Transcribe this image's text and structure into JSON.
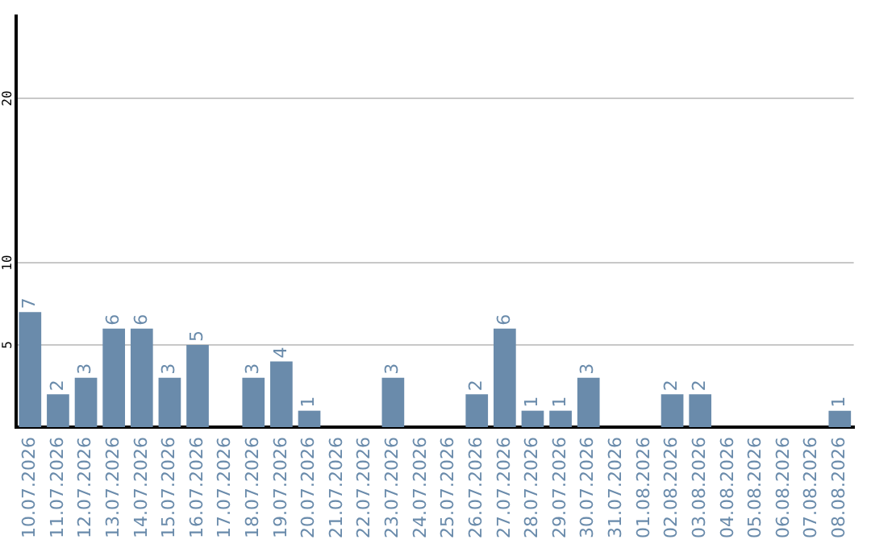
{
  "chart_data": {
    "type": "bar",
    "categories": [
      "10.07.2026",
      "11.07.2026",
      "12.07.2026",
      "13.07.2026",
      "14.07.2026",
      "15.07.2026",
      "16.07.2026",
      "17.07.2026",
      "18.07.2026",
      "19.07.2026",
      "20.07.2026",
      "21.07.2026",
      "22.07.2026",
      "23.07.2026",
      "24.07.2026",
      "25.07.2026",
      "26.07.2026",
      "27.07.2026",
      "28.07.2026",
      "29.07.2026",
      "30.07.2026",
      "31.07.2026",
      "01.08.2026",
      "02.08.2026",
      "03.08.2026",
      "04.08.2026",
      "05.08.2026",
      "06.08.2026",
      "07.08.2026",
      "08.08.2026"
    ],
    "values": [
      7,
      2,
      3,
      6,
      6,
      3,
      5,
      0,
      3,
      4,
      1,
      0,
      0,
      3,
      0,
      0,
      2,
      6,
      1,
      1,
      3,
      0,
      0,
      2,
      2,
      0,
      0,
      0,
      0,
      1
    ],
    "value_labels": [
      "7",
      "2",
      "3",
      "6",
      "6",
      "3",
      "5",
      null,
      "3",
      "4",
      "1",
      null,
      null,
      "3",
      null,
      null,
      "2",
      "6",
      "1",
      "1",
      "3",
      null,
      null,
      "2",
      "2",
      null,
      null,
      null,
      null,
      "1"
    ],
    "color": "#6a8bab",
    "ylim": [
      0,
      25
    ],
    "yticks": [
      5,
      10,
      20
    ],
    "grid": "y"
  }
}
